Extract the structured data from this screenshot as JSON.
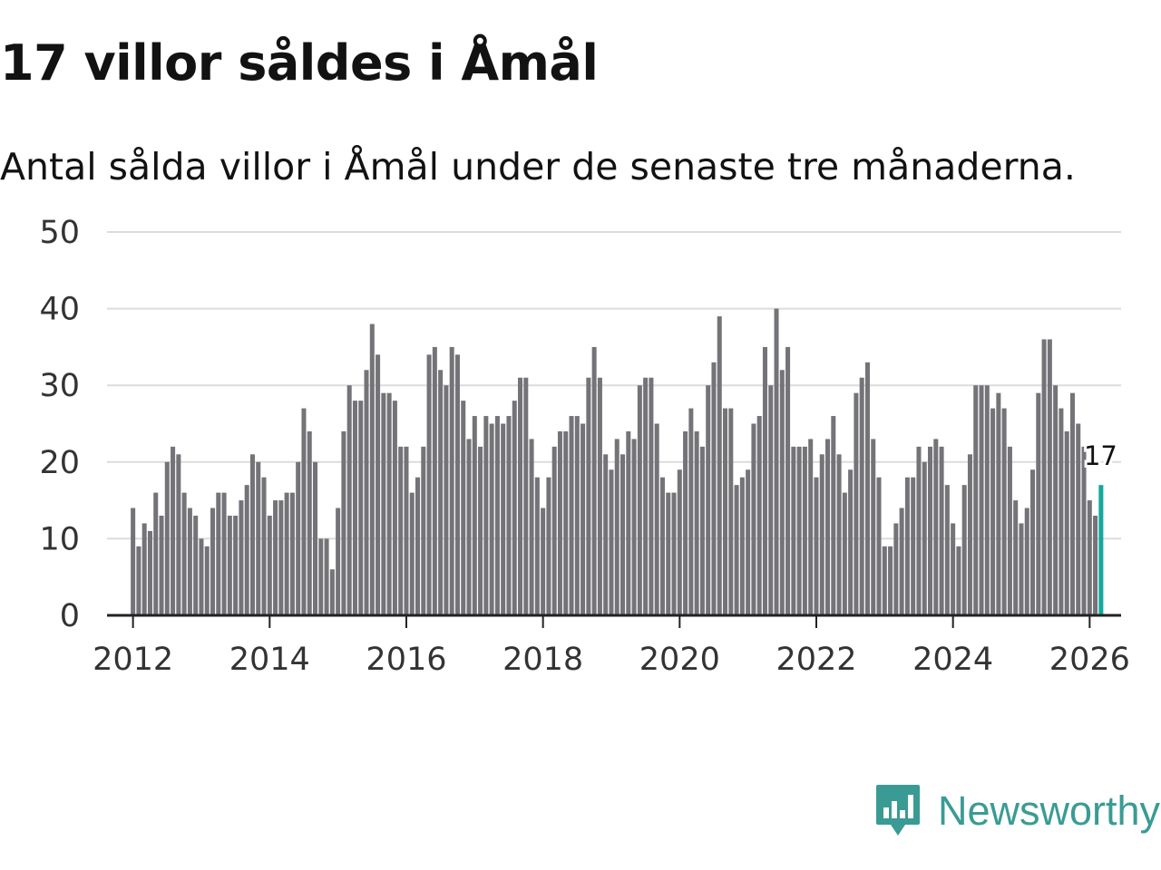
{
  "title": "17 villor såldes i Åmål",
  "subtitle": "Antal sålda villor i Åmål under de senaste tre månaderna.",
  "brand": {
    "name": "Newsworthy",
    "icon": "newsworthy-logo-icon",
    "color": "#3a9b94"
  },
  "colors": {
    "bar": "#747378",
    "highlight": "#13a89e",
    "grid": "#dcdcdc",
    "axis": "#222222"
  },
  "chart_data": {
    "type": "bar",
    "title": "17 villor såldes i Åmål",
    "xlabel": "",
    "ylabel": "",
    "ylim": [
      0,
      50
    ],
    "yticks": [
      0,
      10,
      20,
      30,
      40,
      50
    ],
    "xlim": [
      2011.62,
      2026.46
    ],
    "xticks": [
      2012,
      2014,
      2016,
      2018,
      2020,
      2022,
      2024,
      2026
    ],
    "grid": true,
    "x_start": 2012.0,
    "x_step": 0.08333,
    "values": [
      14,
      9,
      12,
      11,
      16,
      13,
      20,
      22,
      21,
      16,
      14,
      13,
      10,
      9,
      14,
      16,
      16,
      13,
      13,
      15,
      17,
      21,
      20,
      18,
      13,
      15,
      15,
      16,
      16,
      20,
      27,
      24,
      20,
      10,
      10,
      6,
      14,
      24,
      30,
      28,
      28,
      32,
      38,
      34,
      29,
      29,
      28,
      22,
      22,
      16,
      18,
      22,
      34,
      35,
      32,
      30,
      35,
      34,
      28,
      23,
      26,
      22,
      26,
      25,
      26,
      25,
      26,
      28,
      31,
      31,
      23,
      18,
      14,
      18,
      22,
      24,
      24,
      26,
      26,
      25,
      31,
      35,
      31,
      21,
      19,
      23,
      21,
      24,
      23,
      30,
      31,
      31,
      25,
      18,
      16,
      16,
      19,
      24,
      27,
      24,
      22,
      30,
      33,
      39,
      27,
      27,
      17,
      18,
      19,
      25,
      26,
      35,
      30,
      40,
      32,
      35,
      22,
      22,
      22,
      23,
      18,
      21,
      23,
      26,
      21,
      16,
      19,
      29,
      31,
      33,
      23,
      18,
      9,
      9,
      12,
      14,
      18,
      18,
      22,
      20,
      22,
      23,
      22,
      17,
      12,
      9,
      17,
      21,
      30,
      30,
      30,
      27,
      29,
      27,
      22,
      15,
      12,
      14,
      19,
      29,
      36,
      36,
      30,
      27,
      24,
      29,
      25,
      22,
      15,
      13,
      17
    ],
    "highlight_index": 170,
    "highlight_label": "17"
  }
}
